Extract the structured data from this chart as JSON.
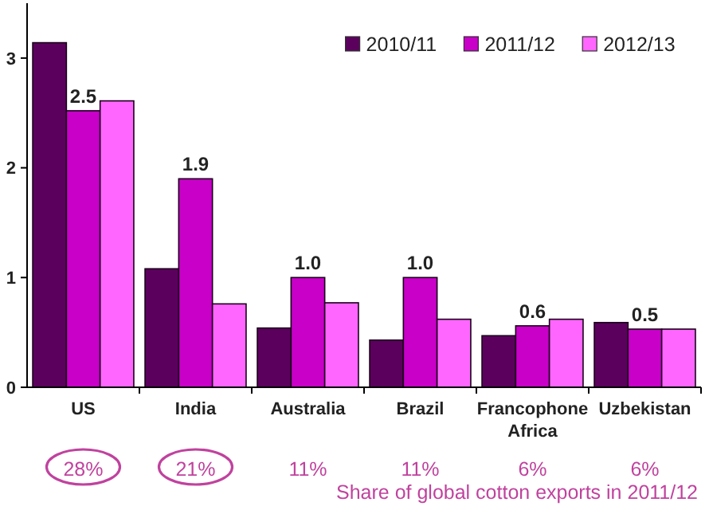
{
  "chart_data": {
    "type": "bar",
    "categories": [
      "US",
      "India",
      "Australia",
      "Brazil",
      "Francophone Africa",
      "Uzbekistan"
    ],
    "series": [
      {
        "name": "2010/11",
        "color": "#5c005e",
        "values": [
          3.14,
          1.08,
          0.54,
          0.43,
          0.47,
          0.59
        ]
      },
      {
        "name": "2011/12",
        "color": "#c800c8",
        "values": [
          2.52,
          1.9,
          1.0,
          1.0,
          0.56,
          0.53
        ],
        "value_labels": [
          "2.5",
          "1.9",
          "1.0",
          "1.0",
          "0.6",
          "0.5"
        ]
      },
      {
        "name": "2012/13",
        "color": "#ff66ff",
        "values": [
          2.61,
          0.76,
          0.77,
          0.62,
          0.62,
          0.53
        ]
      }
    ],
    "ylim": [
      0,
      3.5
    ],
    "yticks": [
      0,
      1,
      2,
      3
    ],
    "grid": false,
    "legend": "top right",
    "annotations": [
      "28%",
      "21%",
      "11%",
      "11%",
      "6%",
      "6%",
      "Share of global cotton exports in 2011/12"
    ]
  }
}
